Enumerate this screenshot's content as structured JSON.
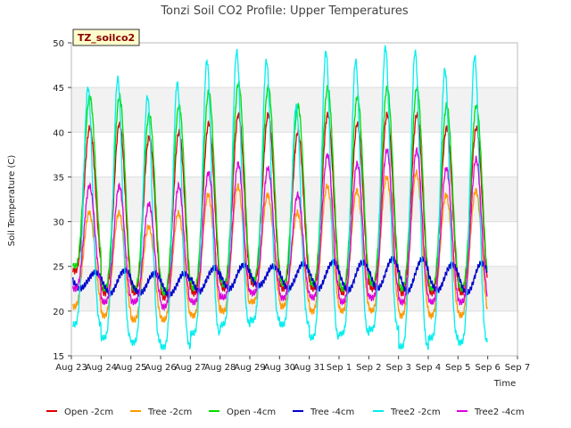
{
  "chart_data": {
    "type": "line",
    "title": "Tonzi Soil CO2 Profile: Upper Temperatures",
    "xlabel": "Time",
    "ylabel": "Soil Temperature (C)",
    "ylim": [
      15,
      50
    ],
    "yticks": [
      15,
      20,
      25,
      30,
      35,
      40,
      45,
      50
    ],
    "xlim": [
      "2021-08-23",
      "2021-09-07"
    ],
    "xticks": [
      "Aug 23",
      "Aug 24",
      "Aug 25",
      "Aug 26",
      "Aug 27",
      "Aug 28",
      "Aug 29",
      "Aug 30",
      "Aug 31",
      "Sep 1",
      "Sep 2",
      "Sep 3",
      "Sep 4",
      "Sep 5",
      "Sep 6",
      "Sep 7"
    ],
    "badge": "TZ_soilco2",
    "grid": "horizontal-bands",
    "legend_position": "bottom",
    "series": [
      {
        "name": "Open -2cm",
        "color": "#dd0000",
        "min": [
          24.5,
          22,
          22,
          21.5,
          22,
          22.5,
          23,
          22.5,
          22.5,
          22,
          22.5,
          22,
          22,
          22,
          21.5
        ],
        "max": [
          40.5,
          41,
          39.5,
          40,
          41,
          42,
          42,
          40,
          42,
          41,
          42,
          42,
          40.5,
          40.5,
          40
        ]
      },
      {
        "name": "Tree -2cm",
        "color": "#ff9900",
        "min": [
          20.5,
          19.5,
          19,
          19,
          19.5,
          20,
          21,
          20.5,
          20,
          20,
          20,
          19.5,
          19.5,
          19.5,
          19.5
        ],
        "max": [
          31,
          31,
          29.5,
          31,
          33,
          34,
          33,
          31,
          34,
          33.5,
          35,
          35.5,
          33,
          33.5,
          32
        ]
      },
      {
        "name": "Open -4cm",
        "color": "#00dd00",
        "min": [
          25,
          22.5,
          22.5,
          22,
          22.5,
          23,
          23.5,
          23,
          23,
          22.5,
          23,
          22.5,
          22.5,
          22.5,
          22
        ],
        "max": [
          44,
          44,
          42,
          43,
          44.5,
          45.5,
          45,
          43,
          45,
          44,
          45,
          45,
          43,
          43,
          41
        ]
      },
      {
        "name": "Tree -4cm",
        "color": "#0000cc",
        "min": [
          22.5,
          22,
          22,
          21.8,
          22.2,
          22.5,
          22.8,
          22.5,
          22.5,
          22.3,
          22.5,
          22.2,
          22.3,
          22,
          22
        ],
        "max": [
          24.3,
          24.6,
          24.2,
          24.2,
          24.8,
          25.2,
          25,
          25.3,
          25.5,
          25.5,
          25.8,
          25.8,
          25.2,
          25.4,
          25.2
        ]
      },
      {
        "name": "Tree2 -2cm",
        "color": "#00eeee",
        "min": [
          18.5,
          17,
          16.5,
          16,
          17.5,
          18.5,
          19,
          18.5,
          17,
          17.5,
          18,
          16,
          17,
          16.5,
          16
        ],
        "max": [
          45,
          46,
          44,
          45.5,
          48,
          49,
          48,
          43,
          49,
          48,
          49.5,
          49,
          47,
          48.5,
          47.5
        ]
      },
      {
        "name": "Tree2 -4cm",
        "color": "#dd00dd",
        "min": [
          22.5,
          21,
          21,
          20.5,
          21,
          21.5,
          22,
          21.5,
          21.5,
          21,
          21.5,
          21,
          21,
          21,
          20.5
        ],
        "max": [
          34,
          34,
          32,
          34,
          35.5,
          36.5,
          36,
          33,
          37.5,
          36.5,
          38,
          38,
          36,
          37,
          36
        ]
      }
    ]
  }
}
